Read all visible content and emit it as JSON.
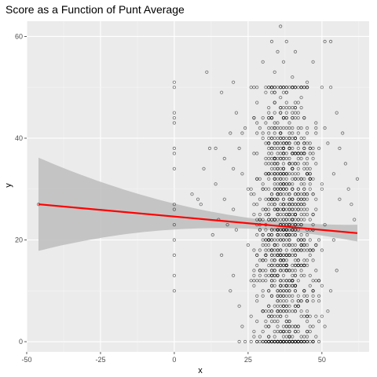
{
  "chart_data": {
    "type": "scatter",
    "title": "Score as a Function of Punt Average",
    "xlabel": "x",
    "ylabel": "y",
    "xlim": [
      -50,
      66
    ],
    "ylim": [
      -2,
      63
    ],
    "x_ticks": [
      -50,
      -25,
      0,
      25,
      50
    ],
    "x_tick_labels": [
      "-50",
      "-25",
      "0",
      "25",
      "50"
    ],
    "y_ticks": [
      0,
      20,
      40,
      60
    ],
    "y_tick_labels": [
      "0",
      "20",
      "40",
      "60"
    ],
    "grid": true,
    "legend": "none",
    "colors": {
      "panel_background": "#ebebeb",
      "grid_major": "#ffffff",
      "points": "#000000",
      "regression_line": "#ff0000",
      "confidence_band": "#bdbdbd"
    },
    "points": [
      [
        -46,
        27
      ],
      [
        0,
        51
      ],
      [
        0,
        50
      ],
      [
        0,
        45
      ],
      [
        0,
        44
      ],
      [
        0,
        43
      ],
      [
        0,
        38
      ],
      [
        0,
        37
      ],
      [
        0,
        34
      ],
      [
        0,
        27
      ],
      [
        0,
        26
      ],
      [
        0,
        23
      ],
      [
        0,
        20
      ],
      [
        0,
        17
      ],
      [
        0,
        13
      ],
      [
        0,
        10
      ],
      [
        6,
        29
      ],
      [
        8,
        28
      ],
      [
        9,
        27
      ],
      [
        10,
        34
      ],
      [
        11,
        53
      ],
      [
        12,
        38
      ],
      [
        13,
        21
      ],
      [
        14,
        38
      ],
      [
        14,
        31
      ],
      [
        15,
        24
      ],
      [
        16,
        49
      ],
      [
        16,
        17
      ],
      [
        17,
        36
      ],
      [
        17,
        28
      ],
      [
        18,
        23
      ],
      [
        19,
        41
      ],
      [
        19,
        10
      ],
      [
        20,
        51
      ],
      [
        20,
        34
      ],
      [
        20,
        26
      ],
      [
        20,
        13
      ],
      [
        21,
        45
      ],
      [
        21,
        22
      ],
      [
        22,
        38
      ],
      [
        22,
        7
      ],
      [
        22,
        0
      ],
      [
        23,
        41
      ],
      [
        23,
        33
      ],
      [
        23,
        3
      ],
      [
        36,
        62
      ],
      [
        33,
        59
      ],
      [
        38,
        59
      ],
      [
        35,
        57
      ],
      [
        37,
        55
      ],
      [
        51,
        59
      ],
      [
        41,
        57
      ],
      [
        47,
        55
      ],
      [
        45,
        51
      ],
      [
        53,
        59
      ],
      [
        30,
        55
      ],
      [
        40,
        52
      ],
      [
        34,
        53
      ],
      [
        53,
        50
      ],
      [
        55,
        45
      ],
      [
        57,
        41
      ],
      [
        58,
        35
      ],
      [
        59,
        30
      ],
      [
        60,
        27
      ],
      [
        61,
        24
      ],
      [
        62,
        32
      ],
      [
        56,
        38
      ],
      [
        54,
        33
      ],
      [
        56,
        28
      ],
      [
        54,
        20
      ],
      [
        55,
        14
      ],
      [
        53,
        10
      ],
      [
        52,
        6
      ],
      [
        51,
        3
      ],
      [
        49,
        0
      ],
      [
        47,
        0
      ],
      [
        45,
        0
      ],
      [
        43,
        0
      ],
      [
        41,
        0
      ],
      [
        39,
        0
      ],
      [
        38,
        0
      ],
      [
        37,
        0
      ],
      [
        36,
        0
      ],
      [
        35,
        0
      ],
      [
        34,
        0
      ],
      [
        33,
        0
      ],
      [
        32,
        0
      ],
      [
        30,
        0
      ],
      [
        28,
        0
      ],
      [
        26,
        0
      ],
      [
        24,
        0
      ]
    ],
    "cluster": {
      "x_range": [
        23,
        53
      ],
      "y_range": [
        0,
        58
      ],
      "center": [
        37,
        23
      ]
    },
    "regression": {
      "intercept": 24.6,
      "slope": -0.0525,
      "x_range": [
        -46,
        62
      ]
    }
  }
}
